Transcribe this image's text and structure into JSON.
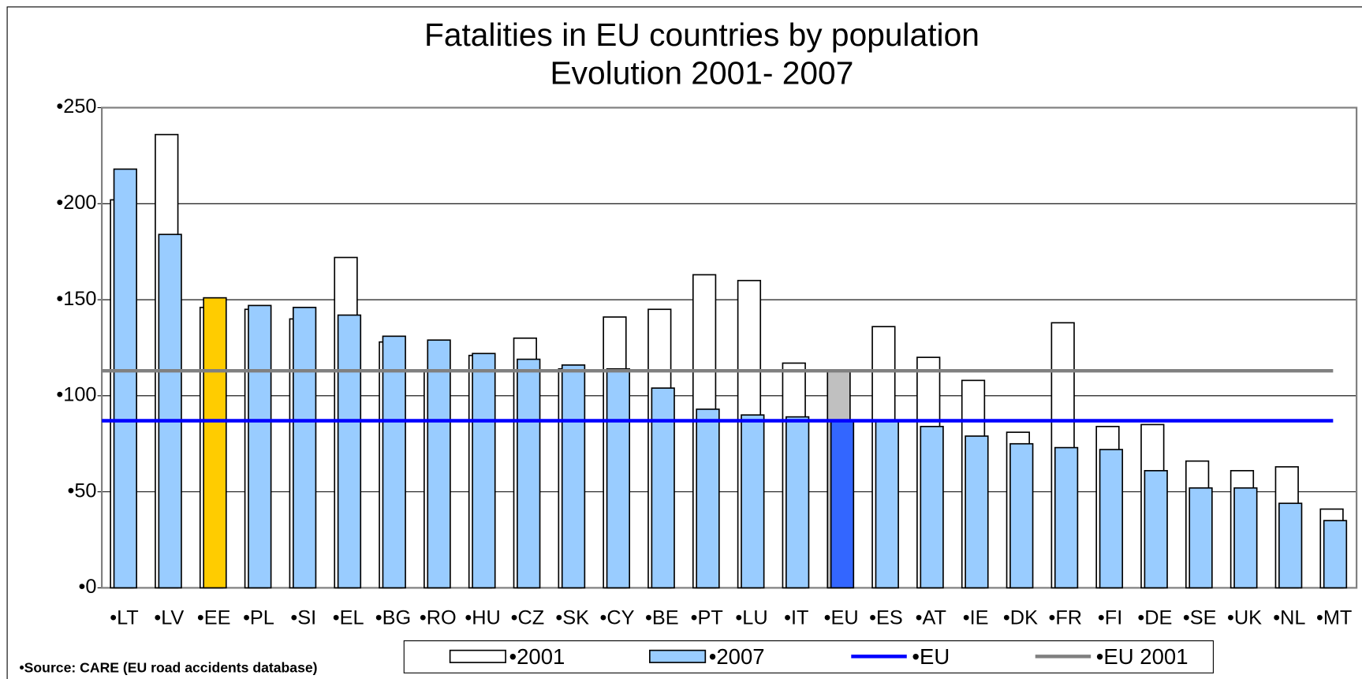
{
  "chart_data": {
    "type": "bar",
    "title": "Fatalities in EU countries by population",
    "subtitle": "Evolution 2001- 2007",
    "source": "•Source: CARE (EU road accidents database)",
    "categories": [
      "•LT",
      "•LV",
      "•EE",
      "•PL",
      "•SI",
      "•EL",
      "•BG",
      "•RO",
      "•HU",
      "•CZ",
      "•SK",
      "•CY",
      "•BE",
      "•PT",
      "•LU",
      "•IT",
      "•EU",
      "•ES",
      "•AT",
      "•IE",
      "•DK",
      "•FR",
      "•FI",
      "•DE",
      "•SE",
      "•UK",
      "•NL",
      "•MT"
    ],
    "series": [
      {
        "name": "•2001",
        "color": "#ffffff",
        "colors": [
          "#ffffff",
          "#ffffff",
          "#ffffff",
          "#ffffff",
          "#ffffff",
          "#ffffff",
          "#ffffff",
          "#ffffff",
          "#ffffff",
          "#ffffff",
          "#ffffff",
          "#ffffff",
          "#ffffff",
          "#ffffff",
          "#ffffff",
          "#ffffff",
          "#c0c0c0",
          "#ffffff",
          "#ffffff",
          "#ffffff",
          "#ffffff",
          "#ffffff",
          "#ffffff",
          "#ffffff",
          "#ffffff",
          "#ffffff",
          "#ffffff",
          "#ffffff"
        ],
        "values": [
          202,
          236,
          146,
          145,
          140,
          172,
          128,
          113,
          121,
          130,
          114,
          141,
          145,
          163,
          160,
          117,
          113,
          136,
          120,
          108,
          81,
          138,
          84,
          85,
          66,
          61,
          63,
          41
        ]
      },
      {
        "name": "•2007",
        "color": "#99ccff",
        "colors": [
          "#99ccff",
          "#99ccff",
          "#ffcc00",
          "#99ccff",
          "#99ccff",
          "#99ccff",
          "#99ccff",
          "#99ccff",
          "#99ccff",
          "#99ccff",
          "#99ccff",
          "#99ccff",
          "#99ccff",
          "#99ccff",
          "#99ccff",
          "#99ccff",
          "#3366ff",
          "#99ccff",
          "#99ccff",
          "#99ccff",
          "#99ccff",
          "#99ccff",
          "#99ccff",
          "#99ccff",
          "#99ccff",
          "#99ccff",
          "#99ccff",
          "#99ccff"
        ],
        "values": [
          218,
          184,
          151,
          147,
          146,
          142,
          131,
          129,
          122,
          119,
          116,
          114,
          104,
          93,
          90,
          89,
          87,
          87,
          84,
          79,
          75,
          73,
          72,
          61,
          52,
          52,
          44,
          35
        ]
      }
    ],
    "reference_lines": [
      {
        "name": "•EU",
        "value": 87,
        "color": "#0000ff"
      },
      {
        "name": "•EU 2001",
        "value": 113,
        "color": "#808080"
      }
    ],
    "ylim": [
      0,
      250
    ],
    "yticks": [
      {
        "value": 0,
        "label": "•0"
      },
      {
        "value": 50,
        "label": "•50"
      },
      {
        "value": 100,
        "label": "•100"
      },
      {
        "value": 150,
        "label": "•150"
      },
      {
        "value": 200,
        "label": "•200"
      },
      {
        "value": 250,
        "label": "•250"
      }
    ],
    "grid": true
  }
}
